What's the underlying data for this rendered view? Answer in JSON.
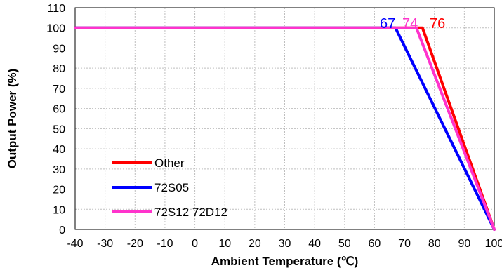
{
  "chart_data": {
    "type": "line",
    "title": "",
    "xlabel": "Ambient Temperature (℃)",
    "ylabel": "Output Power (%)",
    "xlim": [
      -40,
      100
    ],
    "ylim": [
      0,
      110
    ],
    "xticks": [
      -40,
      -30,
      -20,
      -10,
      0,
      10,
      20,
      30,
      40,
      50,
      60,
      70,
      80,
      90,
      100
    ],
    "yticks": [
      0,
      10,
      20,
      30,
      40,
      50,
      60,
      70,
      80,
      90,
      100,
      110
    ],
    "xtick_labels": [
      "-40",
      "-30",
      "-20",
      "-10",
      "0",
      "10",
      "20",
      "30",
      "40",
      "50",
      "60",
      "70",
      "80",
      "90",
      "100"
    ],
    "ytick_labels": [
      "0",
      "10",
      "20",
      "30",
      "40",
      "50",
      "60",
      "70",
      "80",
      "90",
      "100",
      "110"
    ],
    "grid": "dashed",
    "legend_position": "lower-left",
    "series": [
      {
        "name": "Other",
        "color": "#ff0000",
        "x": [
          -40,
          76,
          100
        ],
        "y": [
          100,
          100,
          0
        ]
      },
      {
        "name": "72S05",
        "color": "#0000ff",
        "x": [
          -40,
          67,
          100
        ],
        "y": [
          100,
          100,
          0
        ]
      },
      {
        "name": "72S12 72D12",
        "color": "#ff33cc",
        "x": [
          -40,
          74,
          100
        ],
        "y": [
          100,
          100,
          0
        ]
      }
    ],
    "annotations": [
      {
        "text": "67",
        "color": "#0000ff"
      },
      {
        "text": "74",
        "color": "#ff33cc"
      },
      {
        "text": "76",
        "color": "#ff0000"
      }
    ]
  }
}
